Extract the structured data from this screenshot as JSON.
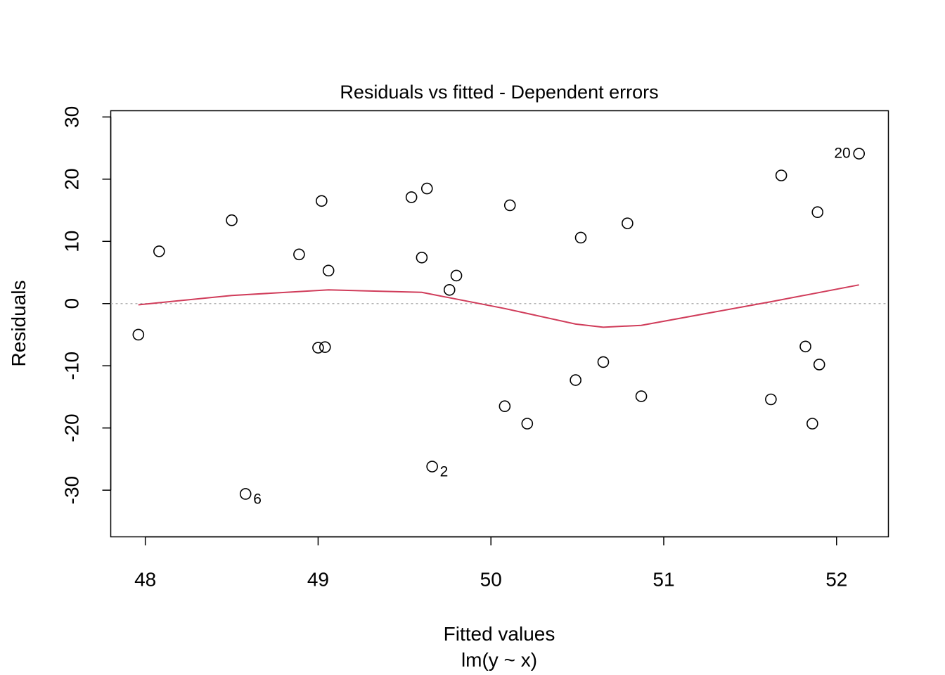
{
  "chart_data": {
    "type": "scatter",
    "title": "Residuals vs fitted - Dependent errors",
    "xlabel": "Fitted values",
    "sublabel": "lm(y ~ x)",
    "ylabel": "Residuals",
    "xlim": [
      47.8,
      52.3
    ],
    "ylim": [
      -37.5,
      31.0
    ],
    "x_ticks": [
      48,
      49,
      50,
      51,
      52
    ],
    "x_tick_labels": [
      "48",
      "49",
      "50",
      "51",
      "52"
    ],
    "y_ticks": [
      -30,
      -20,
      -10,
      0,
      10,
      20,
      30
    ],
    "y_tick_labels": [
      "-30",
      "-20",
      "-10",
      "0",
      "10",
      "20",
      "30"
    ],
    "reference_line": {
      "y": 0,
      "style": "dotted",
      "color": "#b3b3b3"
    },
    "points": [
      {
        "x": 47.96,
        "y": -5.0
      },
      {
        "x": 48.08,
        "y": 8.4
      },
      {
        "x": 48.5,
        "y": 13.4
      },
      {
        "x": 48.58,
        "y": -30.6,
        "label": "6",
        "label_side": "right"
      },
      {
        "x": 48.89,
        "y": 7.9
      },
      {
        "x": 49.0,
        "y": -7.1
      },
      {
        "x": 49.02,
        "y": 16.5
      },
      {
        "x": 49.04,
        "y": -7.0
      },
      {
        "x": 49.06,
        "y": 5.3
      },
      {
        "x": 49.54,
        "y": 17.1
      },
      {
        "x": 49.6,
        "y": 7.4
      },
      {
        "x": 49.63,
        "y": 18.5
      },
      {
        "x": 49.66,
        "y": -26.2,
        "label": "2",
        "label_side": "right"
      },
      {
        "x": 49.76,
        "y": 2.2
      },
      {
        "x": 49.8,
        "y": 4.5
      },
      {
        "x": 50.08,
        "y": -16.5
      },
      {
        "x": 50.11,
        "y": 15.8
      },
      {
        "x": 50.21,
        "y": -19.3
      },
      {
        "x": 50.49,
        "y": -12.3
      },
      {
        "x": 50.52,
        "y": 10.6
      },
      {
        "x": 50.65,
        "y": -9.4
      },
      {
        "x": 50.79,
        "y": 12.9
      },
      {
        "x": 50.87,
        "y": -14.9
      },
      {
        "x": 51.62,
        "y": -15.4
      },
      {
        "x": 51.68,
        "y": 20.6
      },
      {
        "x": 51.82,
        "y": -6.9
      },
      {
        "x": 51.86,
        "y": -19.3
      },
      {
        "x": 51.89,
        "y": 14.7
      },
      {
        "x": 51.9,
        "y": -9.8
      },
      {
        "x": 52.13,
        "y": 24.1,
        "label": "20",
        "label_side": "left"
      }
    ],
    "smooth_line": {
      "color": "#d03c5a",
      "x": [
        47.96,
        48.5,
        49.06,
        49.6,
        50.08,
        50.49,
        50.65,
        50.87,
        51.62,
        52.13
      ],
      "y": [
        -0.2,
        1.3,
        2.2,
        1.8,
        -0.8,
        -3.3,
        -3.8,
        -3.5,
        0.3,
        3.0
      ]
    },
    "grid": false,
    "legend": "none"
  }
}
